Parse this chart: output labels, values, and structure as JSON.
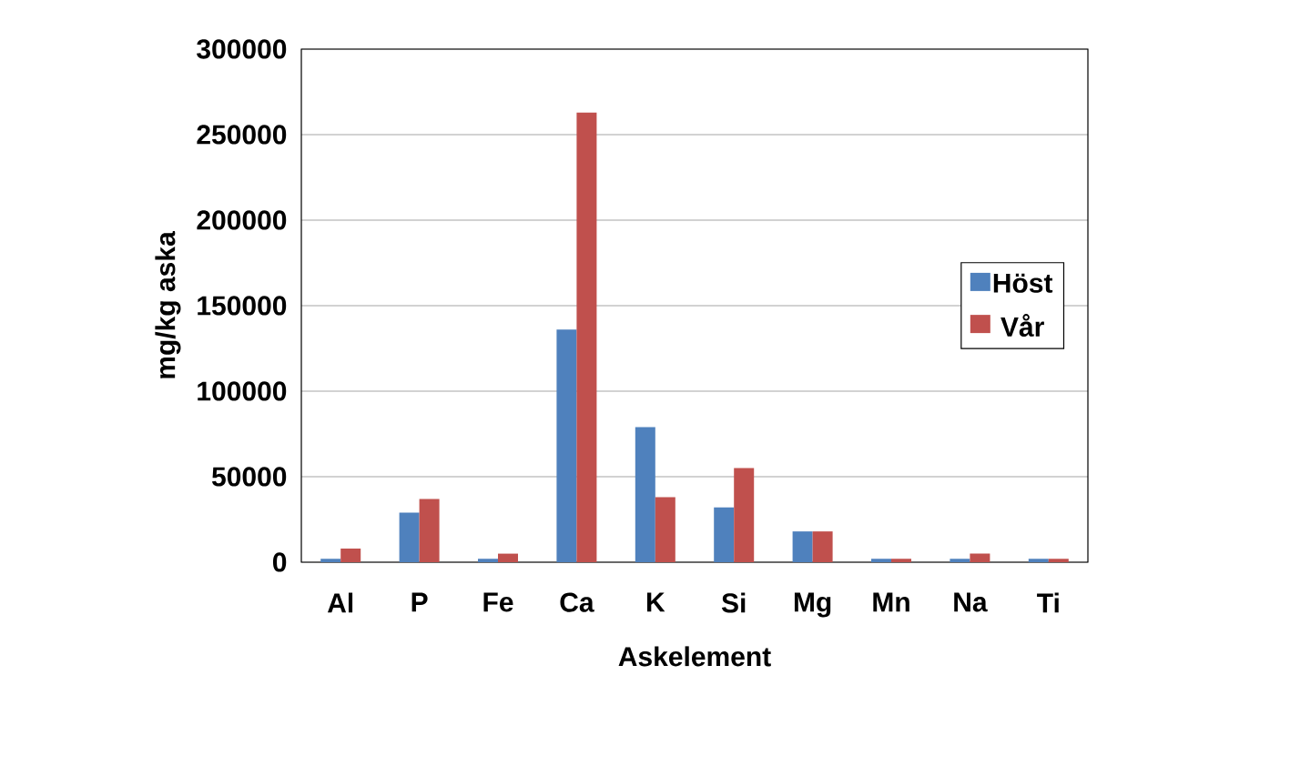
{
  "chart_data": {
    "type": "bar",
    "xlabel": "Askelement",
    "ylabel": "mg/kg aska",
    "categories": [
      "Al",
      "P",
      "Fe",
      "Ca",
      "K",
      "Si",
      "Mg",
      "Mn",
      "Na",
      "Ti"
    ],
    "series": [
      {
        "name": "Höst",
        "color": "#4f81bd",
        "values": [
          2000,
          29000,
          2000,
          136000,
          79000,
          32000,
          18000,
          2000,
          2000,
          2000
        ]
      },
      {
        "name": "Vår",
        "color": "#c0504d",
        "values": [
          8000,
          37000,
          5000,
          263000,
          38000,
          55000,
          18000,
          2000,
          5000,
          2000
        ]
      }
    ],
    "ylim": [
      0,
      300000
    ],
    "yticks": [
      0,
      50000,
      100000,
      150000,
      200000,
      250000,
      300000
    ],
    "grid": "y",
    "legend": "right"
  }
}
